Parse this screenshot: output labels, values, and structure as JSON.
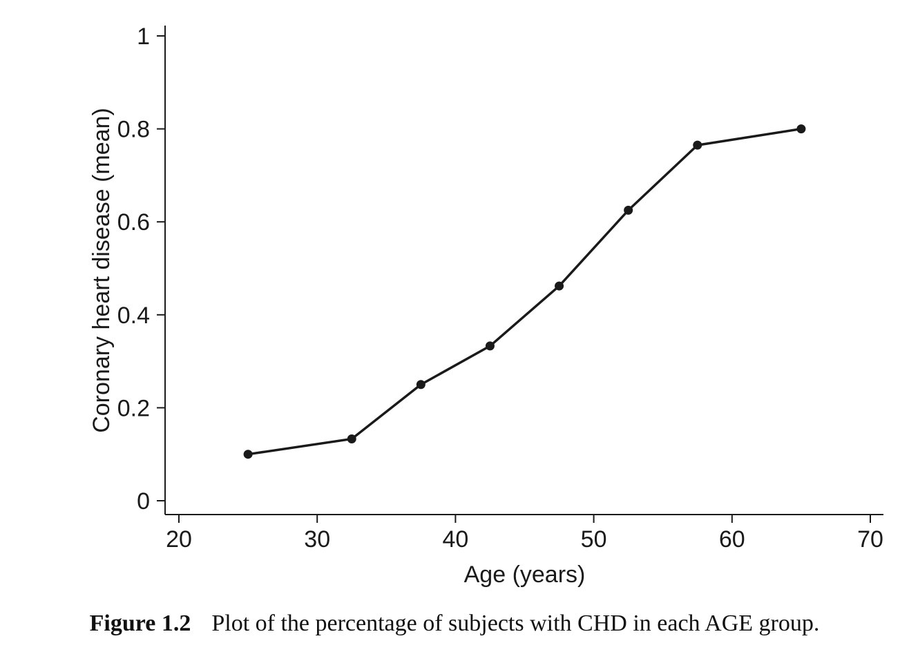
{
  "chart_data": {
    "type": "line",
    "title": "",
    "xlabel": "Age (years)",
    "ylabel": "Coronary heart disease (mean)",
    "xlim": [
      20,
      70
    ],
    "ylim": [
      0,
      1
    ],
    "xticks": [
      20,
      30,
      40,
      50,
      60,
      70
    ],
    "yticks": [
      0,
      0.2,
      0.4,
      0.6,
      0.8,
      1
    ],
    "xtick_labels": [
      "20",
      "30",
      "40",
      "50",
      "60",
      "70"
    ],
    "ytick_labels": [
      "0",
      "0.2",
      "0.4",
      "0.6",
      "0.8",
      "1"
    ],
    "grid": false,
    "legend": "none",
    "line_color": "#1a1a1a",
    "series": [
      {
        "x": [
          25,
          32.5,
          37.5,
          42.5,
          47.5,
          52.5,
          57.5,
          65
        ],
        "y": [
          0.1,
          0.133,
          0.25,
          0.333,
          0.462,
          0.625,
          0.765,
          0.8
        ]
      }
    ]
  },
  "caption": {
    "number": "Figure 1.2",
    "text": "Plot of the percentage of subjects with CHD in each AGE group."
  }
}
